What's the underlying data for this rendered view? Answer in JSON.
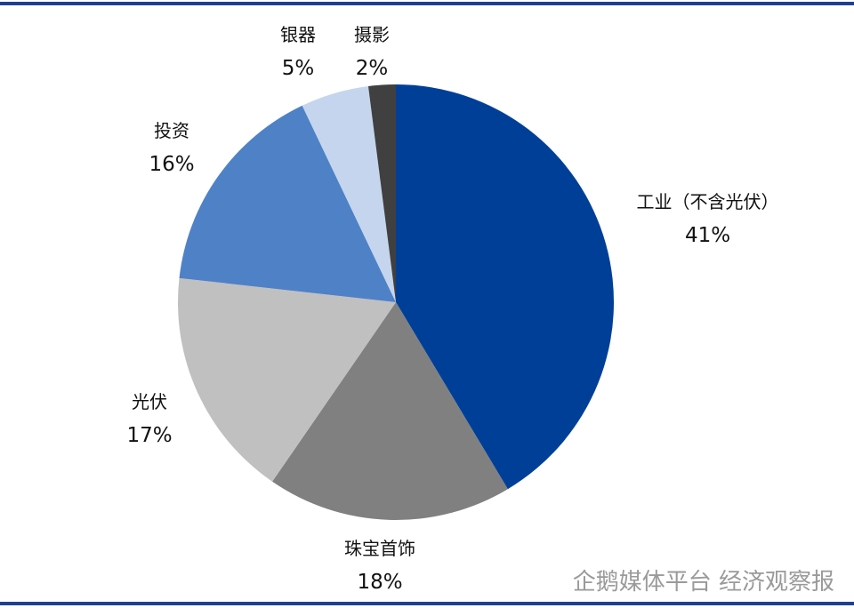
{
  "chart_data": {
    "type": "pie",
    "categories": [
      "工业（不含光伏）",
      "珠宝首饰",
      "光伏",
      "投资",
      "银器",
      "摄影"
    ],
    "values": [
      41,
      18,
      17,
      16,
      5,
      2
    ],
    "value_labels": [
      "41%",
      "18%",
      "17%",
      "16%",
      "5%",
      "2%"
    ],
    "colors": [
      "#003f98",
      "#808080",
      "#c0c0c0",
      "#4f81c7",
      "#c5d5ee",
      "#404040"
    ],
    "watermark": "企鹅媒体平台 经济观察报"
  }
}
